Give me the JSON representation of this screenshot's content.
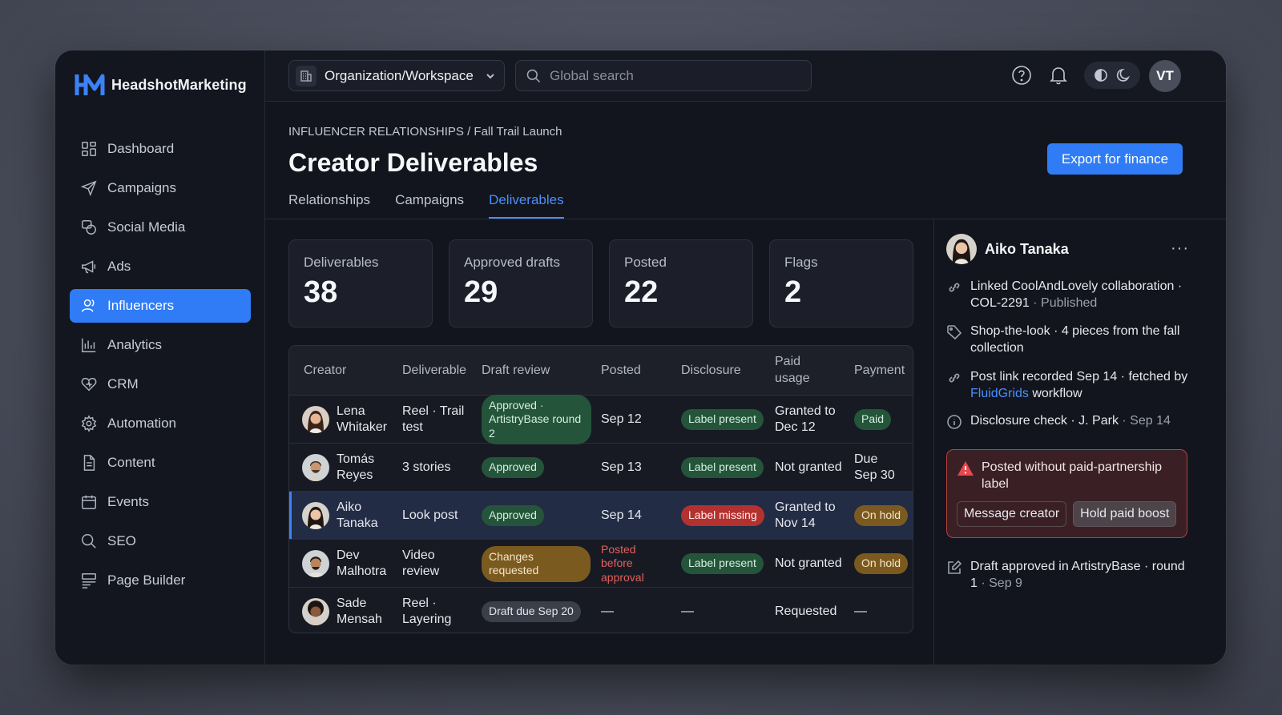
{
  "brand": {
    "name": "HeadshotMarketing",
    "accent": "#2f7cf6"
  },
  "sidebar": {
    "items": [
      {
        "label": "Dashboard",
        "icon": "grid-icon"
      },
      {
        "label": "Campaigns",
        "icon": "send-icon"
      },
      {
        "label": "Social Media",
        "icon": "chat-icon"
      },
      {
        "label": "Ads",
        "icon": "megaphone-icon"
      },
      {
        "label": "Influencers",
        "icon": "user-icon",
        "active": true
      },
      {
        "label": "Analytics",
        "icon": "bar-chart-icon"
      },
      {
        "label": "CRM",
        "icon": "heart-icon"
      },
      {
        "label": "Automation",
        "icon": "gear-icon"
      },
      {
        "label": "Content",
        "icon": "document-icon"
      },
      {
        "label": "Events",
        "icon": "calendar-icon"
      },
      {
        "label": "SEO",
        "icon": "search-icon"
      },
      {
        "label": "Page Builder",
        "icon": "layout-icon"
      }
    ]
  },
  "topbar": {
    "workspace": "Organization/Workspace",
    "search_placeholder": "Global search",
    "user_initials": "VT"
  },
  "header": {
    "breadcrumb": "INFLUENCER RELATIONSHIPS / Fall Trail Launch",
    "title": "Creator Deliverables",
    "export_label": "Export for finance",
    "tabs": [
      "Relationships",
      "Campaigns",
      "Deliverables"
    ],
    "active_tab": "Deliverables"
  },
  "stats": [
    {
      "label": "Deliverables",
      "value": "38"
    },
    {
      "label": "Approved drafts",
      "value": "29"
    },
    {
      "label": "Posted",
      "value": "22"
    },
    {
      "label": "Flags",
      "value": "2"
    }
  ],
  "table": {
    "columns": [
      "Creator",
      "Deliverable",
      "Draft review",
      "Posted",
      "Disclosure",
      "Paid usage",
      "Payment"
    ],
    "rows": [
      {
        "creator": "Lena Whitaker",
        "deliverable": "Reel · Trail test",
        "draft_review": "Approved · ArtistryBase round 2",
        "draft_status": "green",
        "posted": "Sep 12",
        "disclosure": "Label present",
        "disclosure_status": "green",
        "paid_usage": "Granted to Dec 12",
        "payment": "Paid",
        "payment_status": "green"
      },
      {
        "creator": "Tomás Reyes",
        "deliverable": "3 stories",
        "draft_review": "Approved",
        "draft_status": "green",
        "posted": "Sep 13",
        "disclosure": "Label present",
        "disclosure_status": "green",
        "paid_usage": "Not granted",
        "payment": "Due Sep 30",
        "payment_status": "text"
      },
      {
        "creator": "Aiko Tanaka",
        "deliverable": "Look post",
        "draft_review": "Approved",
        "draft_status": "green",
        "posted": "Sep 14",
        "disclosure": "Label missing",
        "disclosure_status": "red",
        "paid_usage": "Granted to Nov 14",
        "payment": "On hold",
        "payment_status": "amber",
        "selected": true
      },
      {
        "creator": "Dev Malhotra",
        "deliverable": "Video review",
        "draft_review": "Changes requested",
        "draft_status": "amber",
        "posted": "Posted before approval",
        "posted_status": "red",
        "disclosure": "Label present",
        "disclosure_status": "green",
        "paid_usage": "Not granted",
        "payment": "On hold",
        "payment_status": "amber"
      },
      {
        "creator": "Sade Mensah",
        "deliverable": "Reel · Layering",
        "draft_review": "Draft due Sep 20",
        "draft_status": "gray",
        "posted": "—",
        "disclosure": "—",
        "disclosure_status": "text",
        "paid_usage": "Requested",
        "payment": "—",
        "payment_status": "text"
      }
    ]
  },
  "panel": {
    "name": "Aiko Tanaka",
    "more_label": "···",
    "activity": [
      {
        "icon": "link-icon",
        "text": "Linked CoolAndLovely collaboration · COL-2291",
        "muted": " · Published"
      },
      {
        "icon": "tag-icon",
        "text": "Shop-the-look · 4 pieces from the fall collection"
      },
      {
        "icon": "link-icon",
        "text": "Post link recorded Sep 14 · fetched by ",
        "link": "FluidGrids",
        "after": " workflow"
      },
      {
        "icon": "info-icon",
        "text": "Disclosure check · J. Park",
        "muted": " · Sep 14"
      }
    ],
    "alert": {
      "text": "Posted without paid-partnership label",
      "message_btn": "Message creator",
      "hold_btn": "Hold paid boost"
    },
    "last_activity": {
      "icon": "edit-icon",
      "text": "Draft approved in ArtistryBase · round 1",
      "muted": " · Sep 9"
    }
  }
}
